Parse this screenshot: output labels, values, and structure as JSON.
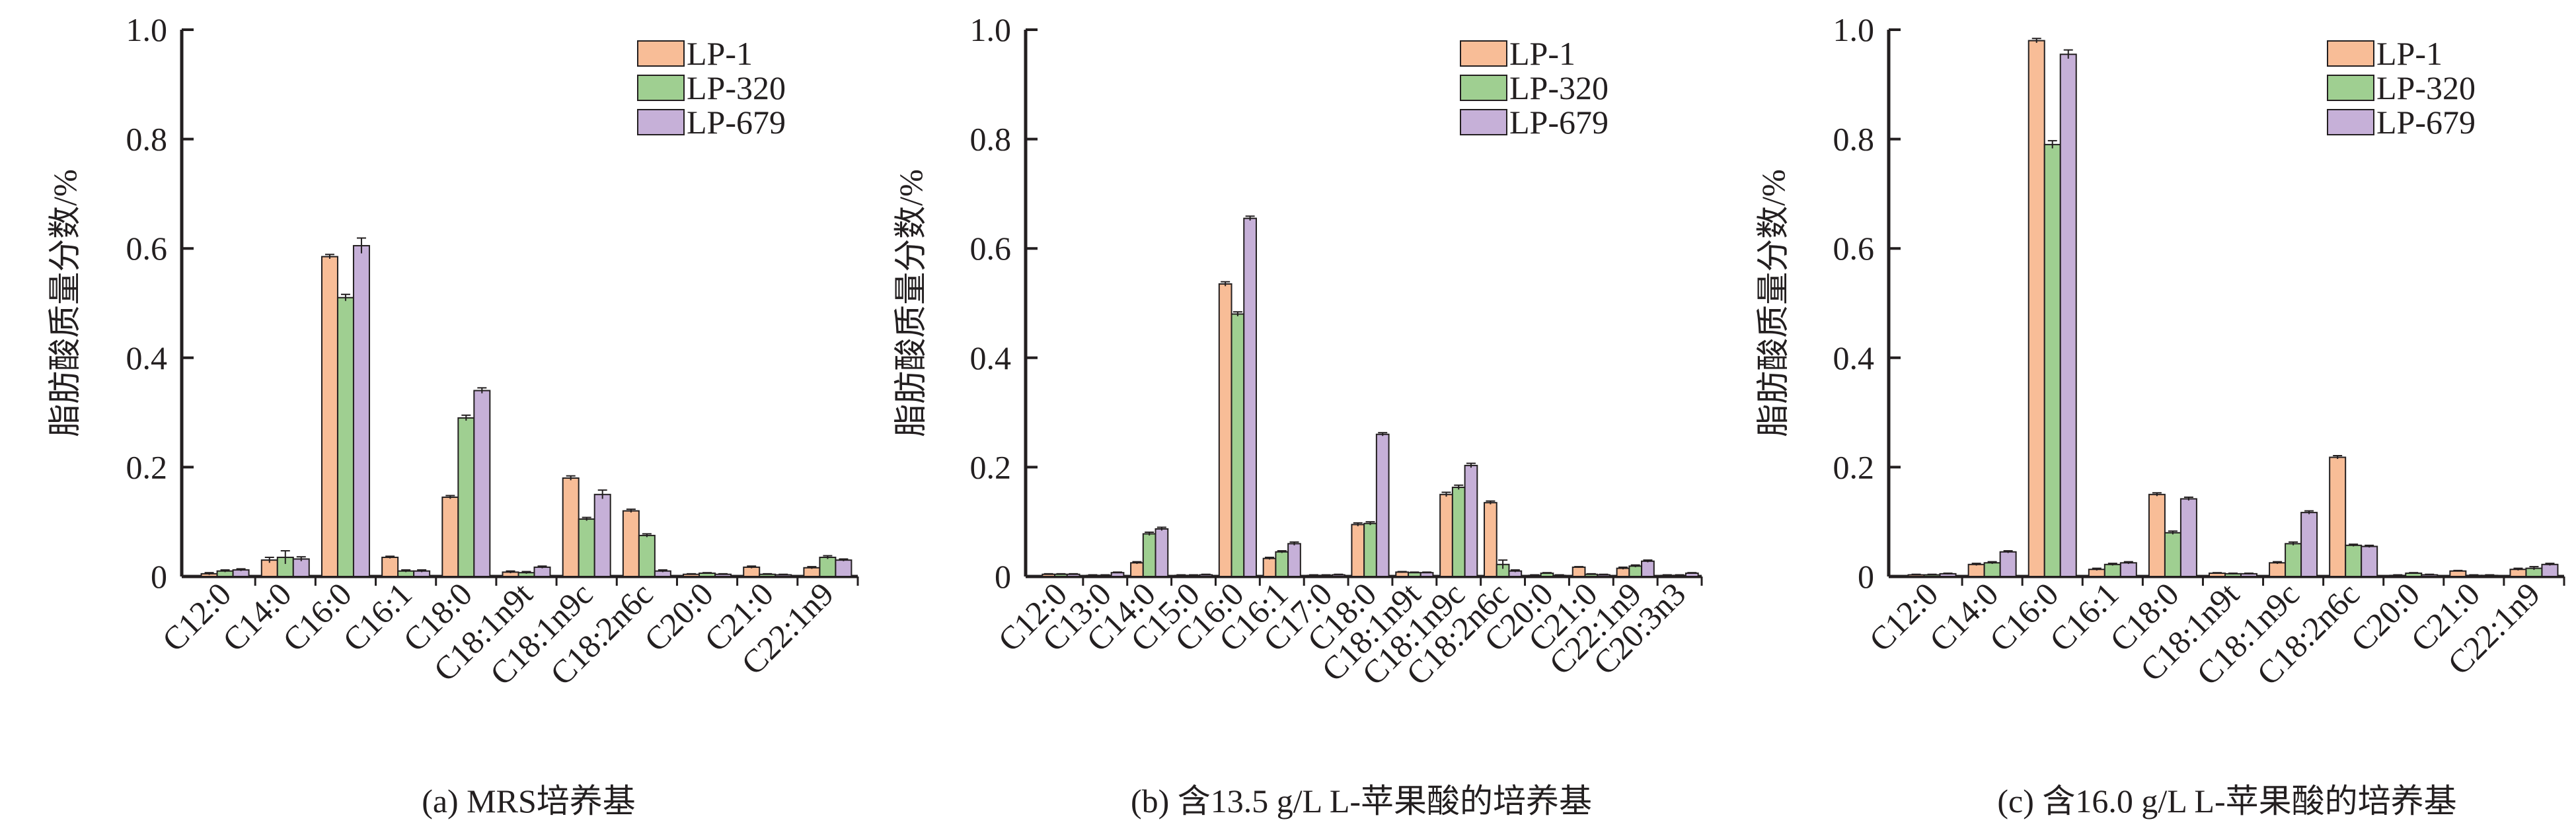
{
  "colors": {
    "LP-1": "#f8bd97",
    "LP-320": "#9fcf91",
    "LP-679": "#c6b0d8",
    "axis": "#231f20"
  },
  "chart_data": [
    {
      "type": "bar",
      "caption": "(a) MRS培养基",
      "ylabel": "脂肪酸质量分数/%",
      "ylim": [
        0,
        1.0
      ],
      "yticks": [
        "0",
        "0.2",
        "0.4",
        "0.6",
        "0.8",
        "1.0"
      ],
      "legend": [
        "LP-1",
        "LP-320",
        "LP-679"
      ],
      "legend_position": "top-right",
      "categories": [
        "C12:0",
        "C14:0",
        "C16:0",
        "C16:1",
        "C18:0",
        "C18:1n9t",
        "C18:1n9c",
        "C18:2n6c",
        "C20:0",
        "C21:0",
        "C22:1n9"
      ],
      "series": [
        {
          "name": "LP-1",
          "values": [
            0.005,
            0.03,
            0.585,
            0.035,
            0.145,
            0.008,
            0.18,
            0.12,
            0.004,
            0.017,
            0.016
          ]
        },
        {
          "name": "LP-320",
          "values": [
            0.01,
            0.035,
            0.51,
            0.01,
            0.29,
            0.007,
            0.105,
            0.075,
            0.006,
            0.004,
            0.035
          ]
        },
        {
          "name": "LP-679",
          "values": [
            0.012,
            0.032,
            0.605,
            0.01,
            0.34,
            0.017,
            0.15,
            0.01,
            0.004,
            0.003,
            0.03
          ]
        }
      ],
      "errors": [
        [
          0.002,
          0.005,
          0.004,
          0.002,
          0.003,
          0.002,
          0.004,
          0.003,
          0.001,
          0.002,
          0.002
        ],
        [
          0.002,
          0.012,
          0.006,
          0.002,
          0.005,
          0.002,
          0.003,
          0.003,
          0.001,
          0.001,
          0.003
        ],
        [
          0.002,
          0.004,
          0.014,
          0.002,
          0.005,
          0.002,
          0.008,
          0.002,
          0.001,
          0.001,
          0.002
        ]
      ]
    },
    {
      "type": "bar",
      "caption": "(b) 含13.5 g/L L-苹果酸的培养基",
      "ylabel": "脂肪酸质量分数/%",
      "ylim": [
        0,
        1.0
      ],
      "yticks": [
        "0",
        "0.2",
        "0.4",
        "0.6",
        "0.8",
        "1.0"
      ],
      "legend": [
        "LP-1",
        "LP-320",
        "LP-679"
      ],
      "legend_position": "top-right",
      "categories": [
        "C12:0",
        "C13:0",
        "C14:0",
        "C15:0",
        "C16:0",
        "C16:1",
        "C17:0",
        "C18:0",
        "C18:1n9t",
        "C18:1n9c",
        "C18:2n6c",
        "C20:0",
        "C21:0",
        "C22:1n9",
        "C20:3n3"
      ],
      "series": [
        {
          "name": "LP-1",
          "values": [
            0.004,
            0.002,
            0.025,
            0.002,
            0.535,
            0.033,
            0.002,
            0.095,
            0.008,
            0.15,
            0.135,
            0.002,
            0.017,
            0.015,
            0.002
          ]
        },
        {
          "name": "LP-320",
          "values": [
            0.004,
            0.002,
            0.078,
            0.002,
            0.48,
            0.045,
            0.002,
            0.097,
            0.007,
            0.163,
            0.022,
            0.006,
            0.004,
            0.019,
            0.002
          ]
        },
        {
          "name": "LP-679",
          "values": [
            0.004,
            0.007,
            0.087,
            0.003,
            0.655,
            0.06,
            0.003,
            0.26,
            0.007,
            0.203,
            0.01,
            0.002,
            0.003,
            0.028,
            0.006
          ]
        }
      ],
      "errors": [
        [
          0.001,
          0.001,
          0.002,
          0.001,
          0.004,
          0.002,
          0.001,
          0.003,
          0.001,
          0.004,
          0.003,
          0.001,
          0.001,
          0.002,
          0.001
        ],
        [
          0.001,
          0.001,
          0.003,
          0.001,
          0.004,
          0.002,
          0.001,
          0.003,
          0.001,
          0.004,
          0.008,
          0.001,
          0.001,
          0.002,
          0.001
        ],
        [
          0.001,
          0.001,
          0.003,
          0.001,
          0.004,
          0.003,
          0.001,
          0.003,
          0.001,
          0.004,
          0.002,
          0.001,
          0.001,
          0.002,
          0.001
        ]
      ]
    },
    {
      "type": "bar",
      "caption": "(c) 含16.0 g/L L-苹果酸的培养基",
      "ylabel": "脂肪酸质量分数/%",
      "ylim": [
        0,
        1.0
      ],
      "yticks": [
        "0",
        "0.2",
        "0.4",
        "0.6",
        "0.8",
        "1.0"
      ],
      "legend": [
        "LP-1",
        "LP-320",
        "LP-679"
      ],
      "legend_position": "top-right",
      "categories": [
        "C12:0",
        "C14:0",
        "C16:0",
        "C16:1",
        "C18:0",
        "C18:1n9t",
        "C18:1n9c",
        "C18:2n6c",
        "C20:0",
        "C21:0",
        "C22:1n9"
      ],
      "series": [
        {
          "name": "LP-1",
          "values": [
            0.003,
            0.022,
            0.98,
            0.013,
            0.15,
            0.006,
            0.025,
            0.218,
            0.002,
            0.01,
            0.013
          ]
        },
        {
          "name": "LP-320",
          "values": [
            0.003,
            0.025,
            0.79,
            0.022,
            0.08,
            0.005,
            0.06,
            0.057,
            0.006,
            0.002,
            0.015
          ]
        },
        {
          "name": "LP-679",
          "values": [
            0.005,
            0.045,
            0.955,
            0.025,
            0.142,
            0.005,
            0.117,
            0.055,
            0.003,
            0.002,
            0.022
          ]
        }
      ],
      "errors": [
        [
          0.001,
          0.002,
          0.004,
          0.002,
          0.003,
          0.001,
          0.002,
          0.003,
          0.001,
          0.001,
          0.002
        ],
        [
          0.001,
          0.002,
          0.007,
          0.002,
          0.003,
          0.001,
          0.003,
          0.002,
          0.001,
          0.001,
          0.003
        ],
        [
          0.001,
          0.002,
          0.008,
          0.002,
          0.003,
          0.001,
          0.003,
          0.002,
          0.001,
          0.001,
          0.002
        ]
      ]
    }
  ]
}
